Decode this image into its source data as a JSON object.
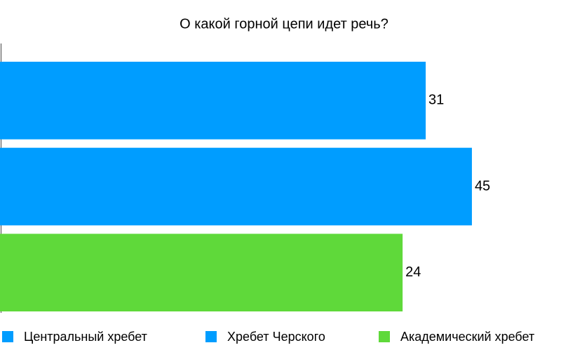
{
  "chart_data": {
    "type": "bar",
    "orientation": "horizontal",
    "title": "О какой горной цепи идет речь?",
    "series": [
      {
        "name": "Центральный хребет",
        "color": "#009dff",
        "values": [
          31
        ]
      },
      {
        "name": "Хребет Черского",
        "color": "#009dff",
        "values": [
          45
        ]
      },
      {
        "name": "Академический хребет",
        "color": "#5fd93a",
        "values": [
          24
        ]
      }
    ],
    "xlim": [
      -98,
      72
    ]
  }
}
